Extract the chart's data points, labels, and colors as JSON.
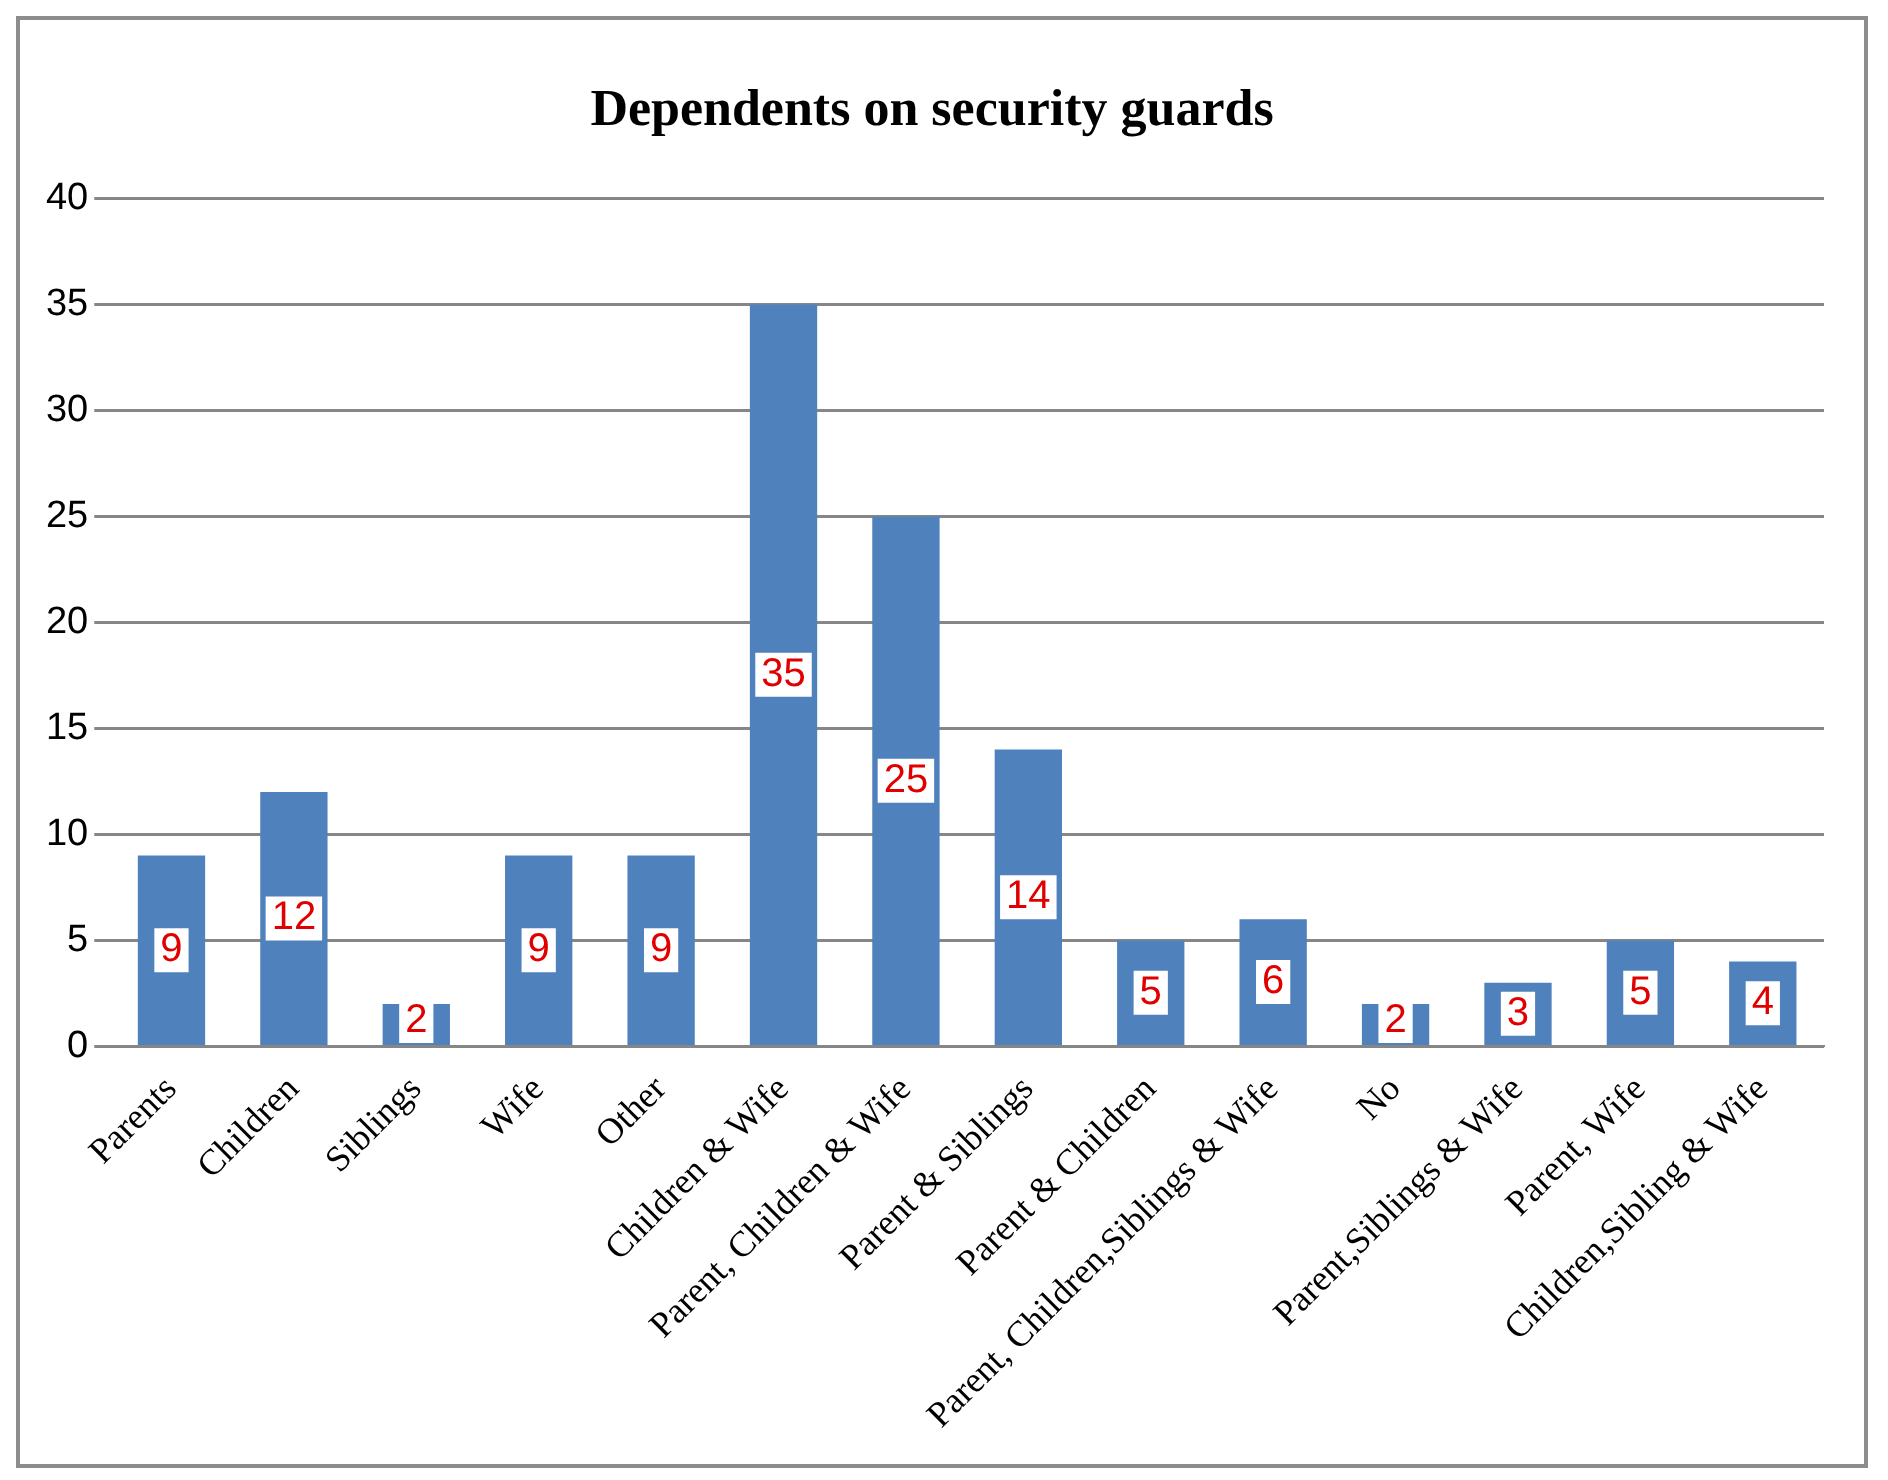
{
  "chart_data": {
    "type": "bar",
    "title": "Dependents on security guards",
    "categories": [
      "Parents",
      "Children",
      "Siblings",
      "Wife",
      "Other",
      "Children & Wife",
      "Parent, Children & Wife",
      "Parent & Siblings",
      "Parent & Children",
      "Parent, Children,Siblings & Wife",
      "No",
      "Parent,Siblings & Wife",
      "Parent, Wife",
      "Children,Sibling & Wife"
    ],
    "values": [
      9,
      12,
      2,
      9,
      9,
      35,
      25,
      14,
      5,
      6,
      2,
      3,
      5,
      4
    ],
    "color": "#4f81bd",
    "ylim": [
      0,
      40
    ],
    "yticks": [
      0,
      5,
      10,
      15,
      20,
      25,
      30,
      35,
      40
    ],
    "grid": "y",
    "data_labels": true,
    "legend": false
  }
}
